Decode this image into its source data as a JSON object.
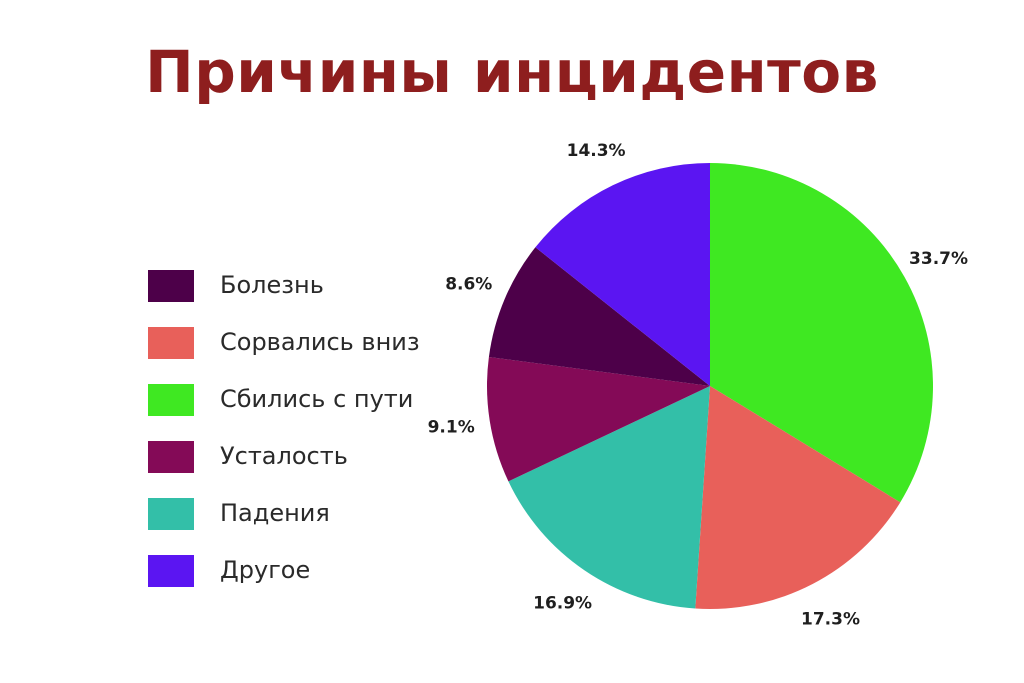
{
  "chart_data": {
    "type": "pie",
    "title": "Причины инцидентов",
    "categories": [
      "Болезнь",
      "Сорвались вниз",
      "Сбились с пути",
      "Усталость",
      "Падения",
      "Другое"
    ],
    "values": [
      8.6,
      17.3,
      33.7,
      9.1,
      16.9,
      14.3
    ],
    "value_labels": [
      "8.6%",
      "17.3%",
      "33.7%",
      "9.1%",
      "16.9%",
      "14.3%"
    ],
    "colors": [
      "#4d0049",
      "#e8605a",
      "#3fe822",
      "#840a57",
      "#33bfa8",
      "#5b15f2"
    ],
    "slice_order": [
      2,
      1,
      4,
      3,
      0,
      5
    ],
    "legend_position": "left"
  }
}
